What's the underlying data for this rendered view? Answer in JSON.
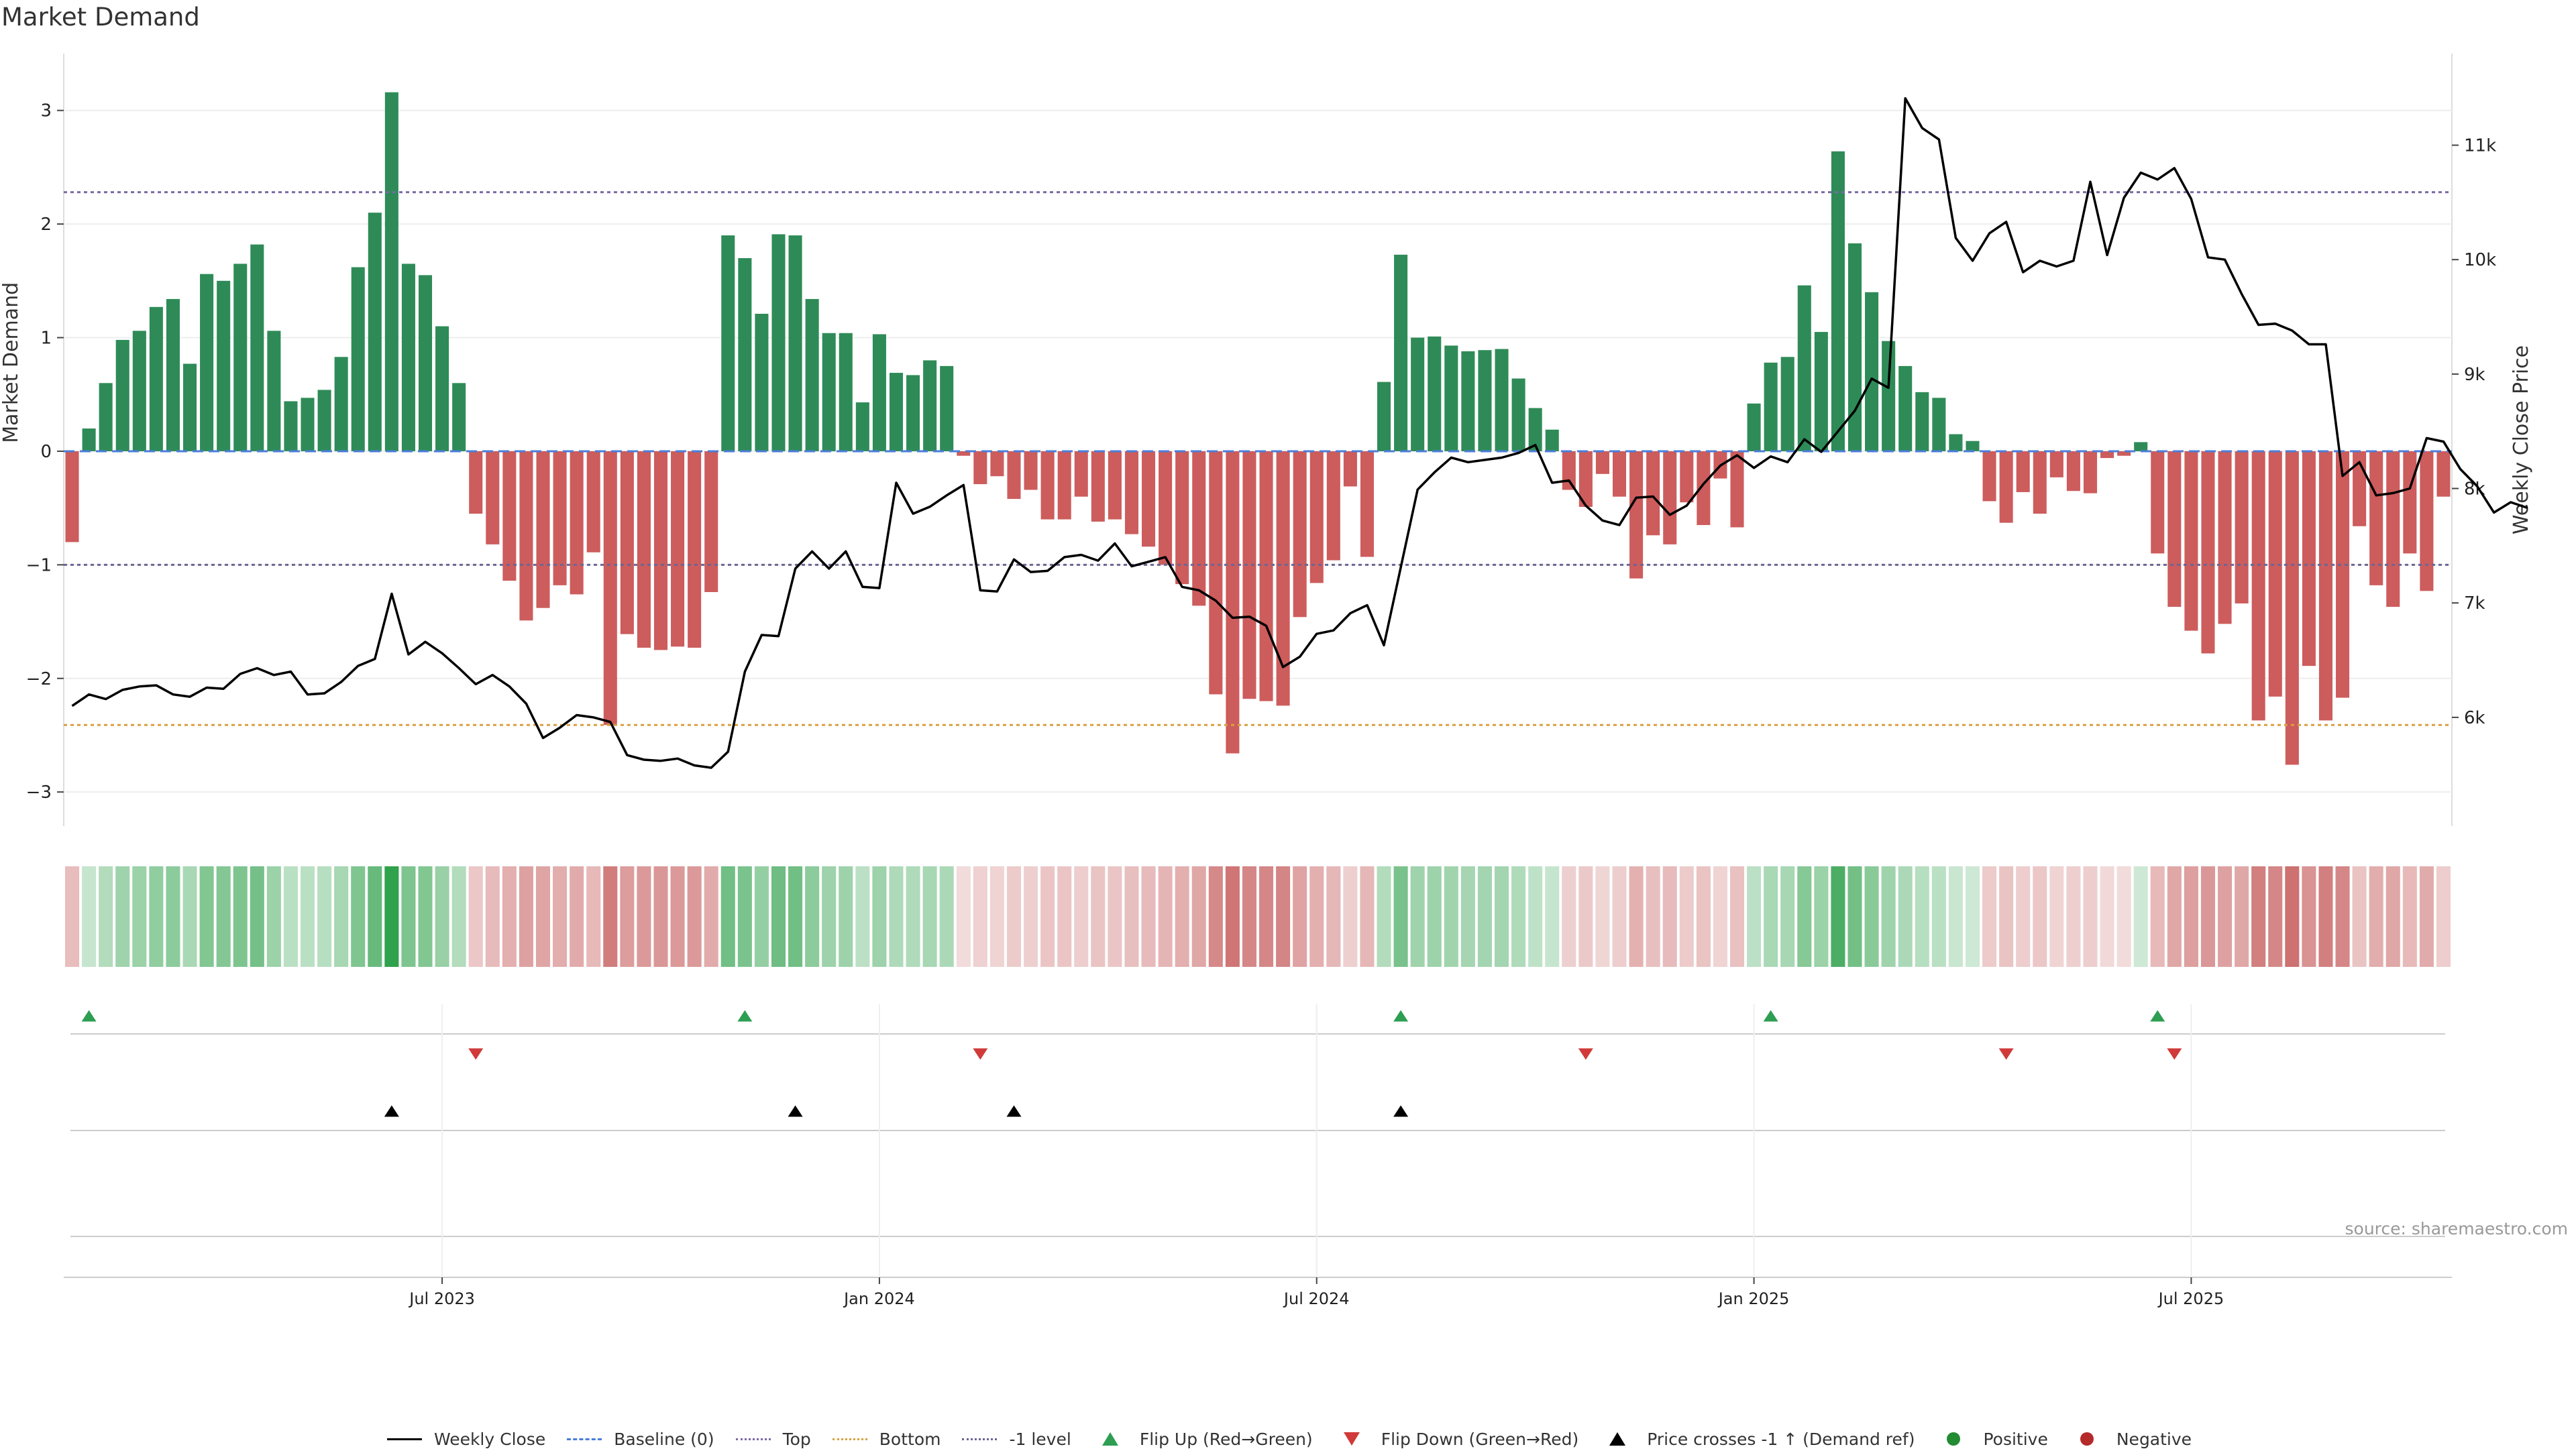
{
  "title": "Market Demand",
  "source": "source: sharemaestro.com",
  "legend": [
    {
      "label": "Weekly Close",
      "kind": "line",
      "color": "#000000",
      "style": "solid"
    },
    {
      "label": "Baseline (0)",
      "kind": "line",
      "color": "#4a7ed8",
      "style": "dashed"
    },
    {
      "label": "Top",
      "kind": "line",
      "color": "#7a6aa6",
      "style": "dotted"
    },
    {
      "label": "Bottom",
      "kind": "line",
      "color": "#d8a040",
      "style": "dotted"
    },
    {
      "label": "-1 level",
      "kind": "line",
      "color": "#6b6694",
      "style": "dotted"
    },
    {
      "label": "Flip Up (Red→Green)",
      "kind": "tri-up",
      "color": "#2e9e52"
    },
    {
      "label": "Flip Down (Green→Red)",
      "kind": "tri-down",
      "color": "#d03a38"
    },
    {
      "label": "Price crosses -1 ↑ (Demand ref)",
      "kind": "tri-up",
      "color": "#000000"
    },
    {
      "label": "Positive",
      "kind": "dot",
      "color": "#238b32"
    },
    {
      "label": "Negative",
      "kind": "dot",
      "color": "#b52a2a"
    }
  ],
  "chart_data": {
    "type": "bar",
    "title": "Market Demand",
    "ylabel": "Market Demand",
    "y2label": "Weekly Close Price",
    "ylim": [
      -3.3,
      3.5
    ],
    "y2lim": [
      5050,
      11800
    ],
    "yticks": [
      -3,
      -2,
      -1,
      0,
      1,
      2,
      3
    ],
    "yticklabels": [
      "−3",
      "−2",
      "−1",
      "0",
      "1",
      "2",
      "3"
    ],
    "y2ticks": [
      6000,
      7000,
      8000,
      9000,
      10000,
      11000
    ],
    "y2ticklabels": [
      "6k",
      "7k",
      "8k",
      "9k",
      "10k",
      "11k"
    ],
    "xticks": [
      {
        "label": "Jul 2023",
        "index": 22
      },
      {
        "label": "Jan 2024",
        "index": 48
      },
      {
        "label": "Jul 2024",
        "index": 74
      },
      {
        "label": "Jan 2025",
        "index": 100
      },
      {
        "label": "Jul 2025",
        "index": 126
      }
    ],
    "reference_lines": {
      "top": 2.28,
      "bottom": -2.41,
      "minus_one": -1,
      "baseline": 0
    },
    "colors": {
      "positive_bar": "#2e8b57",
      "negative_bar": "#cd5c5c",
      "price_line": "#000000",
      "flip_up": "#2e9e52",
      "flip_down": "#d03a38",
      "cross": "#000000"
    },
    "demand": [
      -0.8,
      0.2,
      0.6,
      0.98,
      1.06,
      1.27,
      1.34,
      0.77,
      1.56,
      1.5,
      1.65,
      1.82,
      1.06,
      0.44,
      0.47,
      0.54,
      0.83,
      1.62,
      2.1,
      3.16,
      1.65,
      1.55,
      1.1,
      0.6,
      -0.55,
      -0.82,
      -1.14,
      -1.49,
      -1.38,
      -1.18,
      -1.26,
      -0.89,
      -2.41,
      -1.61,
      -1.73,
      -1.75,
      -1.72,
      -1.73,
      -1.24,
      1.9,
      1.7,
      1.21,
      1.91,
      1.9,
      1.34,
      1.04,
      1.04,
      0.43,
      1.03,
      0.69,
      0.67,
      0.8,
      0.75,
      -0.04,
      -0.29,
      -0.22,
      -0.42,
      -0.34,
      -0.6,
      -0.6,
      -0.4,
      -0.62,
      -0.6,
      -0.73,
      -0.84,
      -1.0,
      -1.17,
      -1.36,
      -2.14,
      -2.66,
      -2.18,
      -2.2,
      -2.24,
      -1.46,
      -1.16,
      -0.96,
      -0.31,
      -0.93,
      0.61,
      1.73,
      1.0,
      1.01,
      0.93,
      0.88,
      0.89,
      0.9,
      0.64,
      0.38,
      0.19,
      -0.34,
      -0.49,
      -0.2,
      -0.4,
      -1.12,
      -0.74,
      -0.82,
      -0.45,
      -0.65,
      -0.24,
      -0.67,
      0.42,
      0.78,
      0.83,
      1.46,
      1.05,
      2.64,
      1.83,
      1.4,
      0.97,
      0.75,
      0.52,
      0.47,
      0.15,
      0.09,
      -0.44,
      -0.63,
      -0.36,
      -0.55,
      -0.23,
      -0.35,
      -0.37,
      -0.06,
      -0.04,
      0.08,
      -0.9,
      -1.37,
      -1.58,
      -1.78,
      -1.52,
      -1.34,
      -2.37,
      -2.16,
      -2.76,
      -1.89,
      -2.37,
      -2.17,
      -0.66,
      -1.18,
      -1.37,
      -0.9,
      -1.23,
      -0.4
    ],
    "price": [
      6100,
      6200,
      6160,
      6240,
      6270,
      6280,
      6200,
      6180,
      6260,
      6250,
      6380,
      6430,
      6370,
      6400,
      6200,
      6210,
      6310,
      6450,
      6510,
      7080,
      6550,
      6660,
      6560,
      6430,
      6290,
      6370,
      6270,
      6120,
      5820,
      5910,
      6020,
      6000,
      5960,
      5670,
      5630,
      5620,
      5640,
      5580,
      5560,
      5700,
      6400,
      6720,
      6710,
      7300,
      7450,
      7300,
      7450,
      7140,
      7130,
      8050,
      7780,
      7840,
      7940,
      8030,
      7110,
      7100,
      7380,
      7270,
      7280,
      7400,
      7420,
      7370,
      7520,
      7320,
      7360,
      7400,
      7140,
      7110,
      7020,
      6870,
      6880,
      6800,
      6440,
      6530,
      6730,
      6760,
      6910,
      6980,
      6630,
      7310,
      7990,
      8140,
      8270,
      8230,
      8250,
      8270,
      8310,
      8380,
      8050,
      8070,
      7850,
      7720,
      7680,
      7920,
      7930,
      7770,
      7850,
      8040,
      8200,
      8290,
      8180,
      8280,
      8230,
      8430,
      8320,
      8500,
      8680,
      8960,
      8880,
      11410,
      11150,
      11050,
      10190,
      9990,
      10230,
      10330,
      9890,
      9990,
      9940,
      9990,
      10680,
      10040,
      10540,
      10760,
      10700,
      10800,
      10530,
      10020,
      10000,
      9700,
      9430,
      9440,
      9380,
      9260,
      9260,
      8110,
      8230,
      7940,
      7960,
      8000,
      8440,
      8410,
      8170,
      8020,
      7790,
      7880,
      7830
    ],
    "flip_up_indices": [
      1,
      40,
      79,
      101,
      124
    ],
    "flip_down_indices": [
      24,
      54,
      90,
      115,
      125
    ],
    "price_cross_indices": [
      19,
      43,
      56,
      79
    ]
  }
}
